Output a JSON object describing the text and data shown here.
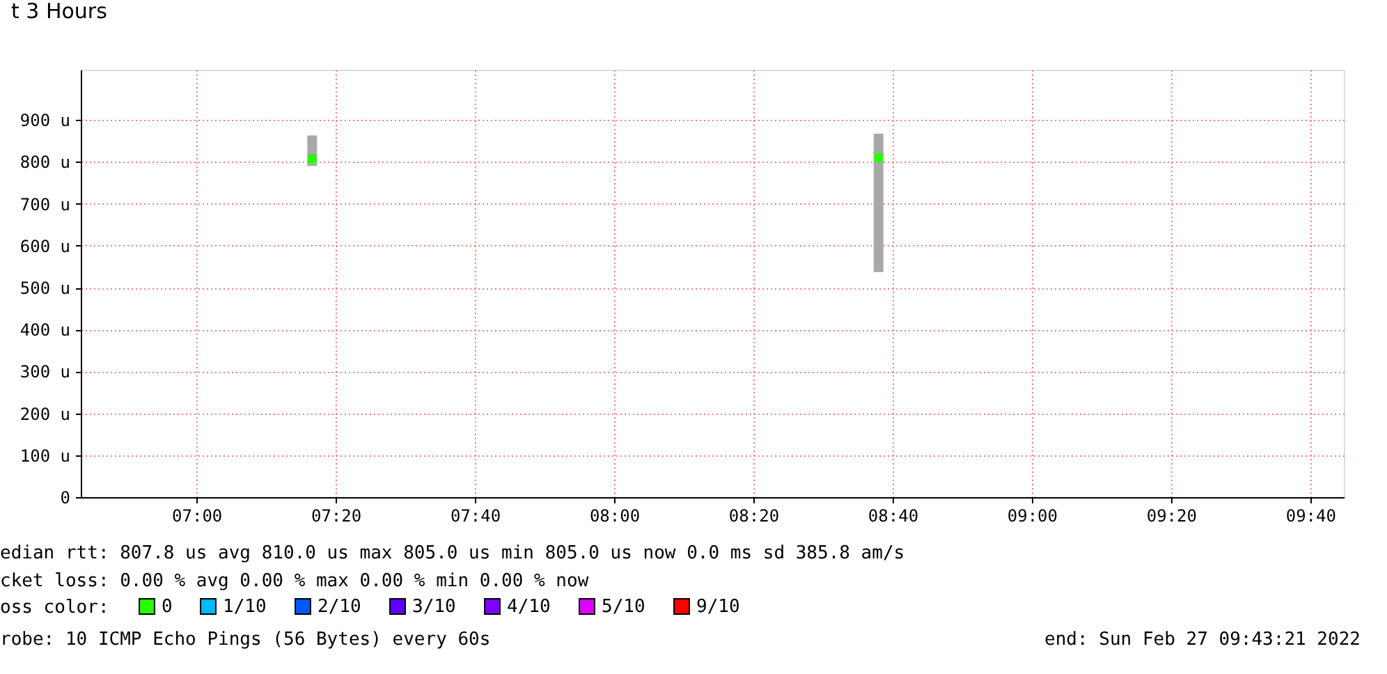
{
  "chart_data": {
    "type": "scatter",
    "title": "t 3 Hours",
    "x": [
      7.277,
      8.633
    ],
    "series": [
      {
        "name": "0",
        "color": "#26ff00",
        "values": [
          807,
          810
        ],
        "errors": [
          [
            790,
            863
          ],
          [
            537,
            867
          ]
        ]
      },
      {
        "name": "1/10",
        "color": "#00b8ff",
        "values": [
          null,
          null
        ]
      },
      {
        "name": "2/10",
        "color": "#0059ff",
        "values": [
          null,
          null
        ]
      },
      {
        "name": "3/10",
        "color": "#5e00ff",
        "values": [
          null,
          null
        ]
      },
      {
        "name": "4/10",
        "color": "#7e00ff",
        "values": [
          null,
          null
        ]
      },
      {
        "name": "5/10",
        "color": "#dd00ff",
        "values": [
          null,
          null
        ]
      },
      {
        "name": "9/10",
        "color": "#ff0000",
        "values": [
          null,
          null
        ]
      }
    ],
    "marker": "square",
    "legend_title": "oss color:",
    "legend": "bottom",
    "xlim": [
      6.723,
      9.747
    ],
    "xticks": [
      {
        "value": 7,
        "label": "07:00"
      },
      {
        "value": 7.3333,
        "label": "07:20"
      },
      {
        "value": 7.6667,
        "label": "07:40"
      },
      {
        "value": 8,
        "label": "08:00"
      },
      {
        "value": 8.3333,
        "label": "08:20"
      },
      {
        "value": 8.6667,
        "label": "08:40"
      },
      {
        "value": 9,
        "label": "09:00"
      },
      {
        "value": 9.3333,
        "label": "09:20"
      },
      {
        "value": 9.6667,
        "label": "09:40"
      }
    ],
    "ylim": [
      0,
      1020
    ],
    "yticks": [
      0,
      {
        "value": 100,
        "label": "100 u"
      },
      {
        "value": 200,
        "label": "200 u"
      },
      {
        "value": 300,
        "label": "300 u"
      },
      {
        "value": 400,
        "label": "400 u"
      },
      {
        "value": 500,
        "label": "500 u"
      },
      {
        "value": 600,
        "label": "600 u"
      },
      {
        "value": 700,
        "label": "700 u"
      },
      {
        "value": 800,
        "label": "800 u"
      },
      {
        "value": 900,
        "label": "900 u"
      }
    ],
    "grid": true,
    "annotations": [
      "edian rtt:  807.8 us avg  810.0 us max  805.0 us min  805.0 us now  0.0 ms sd  385.8   am/s",
      "cket loss: 0.00 % avg  0.00 % max  0.00 % min  0.00 % now",
      "robe:       10 ICMP Echo Pings (56 Bytes) every 60s",
      "end: Sun Feb 27 09:43:21 2022"
    ]
  }
}
